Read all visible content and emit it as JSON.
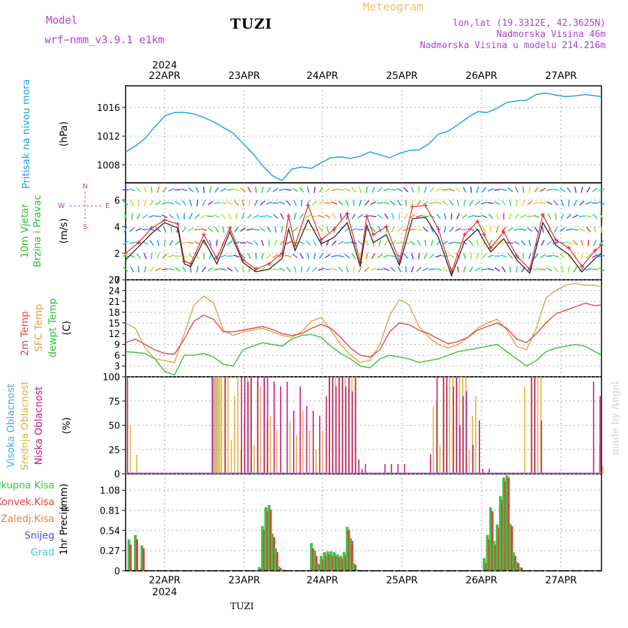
{
  "header": {
    "model_label": "Model",
    "model_name": "wrf−nmm_v3.9.1  e1km",
    "station": "TUZI",
    "title": "Meteogram",
    "lonlat": "lon,lat (19.3312E, 42.3625N)",
    "elevation": "Nadmorska Visina 46m",
    "model_elevation": "Nadmorska Visina u modelu 214.216m"
  },
  "footer": {
    "station": "TUZI",
    "made_by": "made by Angel"
  },
  "colors": {
    "title": "#f0c060",
    "meta": "#b040d0",
    "pressure": "#1aa0e8",
    "wind_speed": "#222222",
    "wind_gust": "#e83030",
    "t2m": "#e84040",
    "tsfc": "#e0a040",
    "dewpt": "#30c030",
    "cloud_high": "#40a8f0",
    "cloud_mid": "#e0b040",
    "cloud_low": "#c01880",
    "precip_total": "#40c040",
    "precip_conv": "#e04040",
    "precip_frz": "#f08040",
    "snow": "#5050f0",
    "grad": "#40c8c8"
  },
  "chart_data": [
    {
      "type": "line",
      "panel": "pressure",
      "ylabel_left": "Pritisak na nivou mora",
      "unit": "(hPa)",
      "yticks": [
        1008,
        1012,
        1016
      ],
      "ylim": [
        1005.5,
        1019
      ],
      "x_hours": [
        0,
        3,
        6,
        9,
        12,
        15,
        18,
        21,
        24,
        27,
        30,
        33,
        36,
        39,
        42,
        45,
        48,
        51,
        54,
        57,
        60,
        63,
        66,
        69,
        72,
        75,
        78,
        81,
        84,
        87,
        90,
        93,
        96,
        99,
        102,
        105,
        108,
        111,
        114,
        117,
        120,
        123,
        126,
        129,
        132,
        135,
        138,
        141,
        144,
        146
      ],
      "values": [
        1009.8,
        1010.6,
        1011.7,
        1013.3,
        1014.8,
        1015.3,
        1015.3,
        1015.1,
        1014.6,
        1014.0,
        1013.2,
        1012.4,
        1011.0,
        1009.6,
        1007.9,
        1006.5,
        1005.8,
        1007.4,
        1007.7,
        1007.5,
        1008.3,
        1009.0,
        1009.1,
        1008.9,
        1009.2,
        1009.8,
        1009.4,
        1009.0,
        1009.6,
        1010.0,
        1010.1,
        1010.9,
        1012.3,
        1012.7,
        1013.6,
        1014.6,
        1015.4,
        1015.3,
        1015.9,
        1016.7,
        1016.9,
        1017.0,
        1017.8,
        1018.0,
        1017.7,
        1017.5,
        1017.6,
        1017.8,
        1017.6,
        1017.5
      ]
    },
    {
      "type": "line",
      "panel": "wind",
      "ylabel_left": [
        "10m Vjetar",
        "Brzina i Pravac"
      ],
      "unit": "(m/s)",
      "compass_labels": [
        "N",
        "E",
        "W",
        "S"
      ],
      "yticks": [
        0,
        2,
        4,
        6
      ],
      "ylim": [
        0,
        7.3
      ],
      "x_hours": [
        0,
        4,
        8,
        12,
        16,
        18,
        20,
        24,
        28,
        32,
        36,
        40,
        44,
        48,
        50,
        52,
        56,
        60,
        64,
        68,
        72,
        74,
        76,
        80,
        84,
        88,
        92,
        96,
        100,
        104,
        108,
        110,
        112,
        116,
        120,
        124,
        128,
        132,
        136,
        140,
        144,
        146
      ],
      "series": [
        {
          "name": "speed",
          "values": [
            1.5,
            2.5,
            3.5,
            4.3,
            3.9,
            1.2,
            1.0,
            3.0,
            1.2,
            3.6,
            1.3,
            0.6,
            0.8,
            1.6,
            3.8,
            2.2,
            4.5,
            2.7,
            3.2,
            4.3,
            1.0,
            4.1,
            2.8,
            3.4,
            1.1,
            4.6,
            4.7,
            3.2,
            0.3,
            2.9,
            3.8,
            2.9,
            2.1,
            3.1,
            1.5,
            0.5,
            4.3,
            2.6,
            1.9,
            0.6,
            1.6,
            2.0
          ]
        },
        {
          "name": "gust",
          "values": [
            2.0,
            2.8,
            3.9,
            4.5,
            4.2,
            1.4,
            1.2,
            3.4,
            1.6,
            3.9,
            1.5,
            0.8,
            1.2,
            2.0,
            4.8,
            2.6,
            5.6,
            3.0,
            3.8,
            5.0,
            1.3,
            4.8,
            3.4,
            4.0,
            1.4,
            5.5,
            5.6,
            3.8,
            0.6,
            3.4,
            4.4,
            3.4,
            2.4,
            3.6,
            1.8,
            0.8,
            4.9,
            3.0,
            2.4,
            1.0,
            2.2,
            2.6
          ]
        }
      ]
    },
    {
      "type": "line",
      "panel": "temperature",
      "ylabel_left": [
        "2m Temp",
        "SFC Temp",
        "dewpt Temp"
      ],
      "unit": "(C)",
      "yticks": [
        0,
        3,
        6,
        9,
        12,
        15,
        18,
        21,
        24,
        27
      ],
      "ylim": [
        0,
        27
      ],
      "x_hours": [
        0,
        3,
        6,
        9,
        12,
        15,
        18,
        21,
        24,
        27,
        30,
        33,
        36,
        39,
        42,
        45,
        48,
        51,
        54,
        57,
        60,
        63,
        66,
        69,
        72,
        75,
        78,
        81,
        84,
        87,
        90,
        93,
        96,
        99,
        102,
        105,
        108,
        111,
        114,
        117,
        120,
        123,
        126,
        129,
        132,
        135,
        138,
        141,
        144,
        146
      ],
      "series": [
        {
          "name": "2m",
          "values": [
            9.5,
            10.5,
            9.0,
            7.5,
            6.5,
            6.3,
            10.5,
            15.5,
            17.2,
            16.0,
            12.5,
            12.5,
            13.0,
            13.5,
            14.0,
            13.2,
            12.0,
            11.5,
            12.0,
            13.5,
            14.6,
            13.5,
            11.0,
            8.0,
            6.0,
            5.5,
            7.5,
            12.5,
            15.0,
            14.5,
            13.0,
            12.0,
            10.5,
            9.2,
            9.8,
            11.0,
            13.0,
            14.0,
            15.0,
            13.5,
            10.5,
            9.5,
            12.0,
            15.0,
            17.5,
            18.5,
            19.5,
            20.5,
            19.8,
            20.0
          ]
        },
        {
          "name": "SFC",
          "values": [
            15.0,
            13.5,
            8.0,
            5.0,
            4.5,
            4.0,
            12.0,
            20.0,
            22.5,
            20.5,
            13.0,
            11.5,
            12.5,
            13.0,
            13.5,
            12.5,
            11.5,
            11.0,
            12.5,
            15.5,
            16.5,
            13.0,
            9.0,
            6.0,
            4.0,
            4.5,
            9.0,
            17.0,
            21.5,
            20.0,
            14.0,
            11.0,
            9.0,
            8.0,
            9.0,
            11.0,
            13.5,
            15.0,
            16.0,
            13.0,
            8.5,
            7.5,
            13.5,
            22.0,
            24.0,
            25.5,
            26.0,
            25.5,
            25.5,
            25.0
          ]
        },
        {
          "name": "dewpt",
          "values": [
            7.0,
            6.8,
            6.5,
            5.0,
            1.5,
            0.5,
            6.0,
            6.0,
            6.5,
            5.5,
            3.5,
            3.0,
            7.5,
            8.5,
            9.5,
            9.0,
            8.5,
            10.5,
            11.5,
            11.8,
            11.0,
            8.5,
            6.5,
            5.0,
            3.0,
            2.5,
            5.0,
            6.0,
            5.5,
            5.0,
            4.0,
            4.5,
            5.0,
            6.0,
            7.0,
            7.5,
            8.0,
            8.5,
            9.0,
            7.0,
            5.0,
            3.0,
            4.5,
            7.0,
            8.0,
            8.5,
            9.0,
            8.5,
            7.0,
            6.0
          ]
        }
      ]
    },
    {
      "type": "bar",
      "panel": "cloud",
      "ylabel_left": [
        "Visoka Oblacnost",
        "Srednja Oblacnost",
        "Niska  Oblacnost"
      ],
      "unit": "(%)",
      "yticks": [
        0,
        25,
        50,
        75,
        100
      ],
      "ylim": [
        0,
        100
      ],
      "x_hours": [
        1,
        2,
        3,
        27,
        27.5,
        28,
        28.5,
        29,
        30,
        31,
        32,
        33,
        34,
        35,
        36,
        37,
        38,
        39,
        40,
        41,
        42,
        43,
        44,
        46,
        48,
        50,
        52,
        54,
        56,
        58,
        60,
        62,
        63,
        64,
        65,
        66,
        67,
        68,
        69,
        70,
        71,
        72,
        73,
        74,
        80,
        82,
        84,
        86,
        94,
        95,
        96,
        97,
        98,
        99,
        100,
        101,
        102,
        103,
        104,
        105,
        106,
        107,
        108,
        109,
        110,
        112,
        122,
        124,
        125,
        126,
        127,
        128,
        144,
        145,
        146
      ],
      "series": [
        {
          "name": "high",
          "values": [
            0,
            0,
            0,
            100,
            100,
            100,
            0,
            0,
            0,
            0,
            0,
            0,
            0,
            0,
            0,
            0,
            0,
            0,
            0,
            0,
            0,
            0,
            0,
            0,
            0,
            0,
            0,
            0,
            0,
            0,
            0,
            0,
            0,
            0,
            0,
            0,
            0,
            0,
            0,
            0,
            0,
            0,
            0,
            0,
            0,
            0,
            0,
            0,
            0,
            0,
            0,
            0,
            0,
            0,
            0,
            0,
            0,
            0,
            0,
            0,
            0,
            0,
            0,
            0,
            0,
            0,
            0,
            0,
            0,
            0,
            0,
            0,
            0,
            0,
            0
          ]
        },
        {
          "name": "mid",
          "values": [
            50,
            0,
            20,
            100,
            100,
            100,
            100,
            100,
            100,
            100,
            35,
            80,
            100,
            25,
            60,
            100,
            100,
            30,
            95,
            90,
            100,
            55,
            60,
            45,
            0,
            55,
            40,
            65,
            45,
            25,
            45,
            100,
            100,
            100,
            100,
            100,
            100,
            100,
            100,
            100,
            0,
            0,
            0,
            0,
            0,
            0,
            0,
            0,
            70,
            75,
            30,
            100,
            90,
            100,
            100,
            100,
            100,
            100,
            100,
            25,
            60,
            80,
            0,
            0,
            0,
            0,
            90,
            100,
            100,
            100,
            100,
            0,
            0,
            30,
            8
          ]
        },
        {
          "name": "low",
          "values": [
            100,
            0,
            0,
            100,
            0,
            0,
            0,
            0,
            0,
            100,
            0,
            0,
            0,
            0,
            100,
            100,
            95,
            100,
            0,
            100,
            0,
            100,
            100,
            95,
            90,
            95,
            65,
            90,
            70,
            65,
            60,
            80,
            100,
            100,
            90,
            100,
            100,
            90,
            100,
            85,
            100,
            15,
            5,
            10,
            10,
            10,
            10,
            10,
            20,
            0,
            100,
            0,
            100,
            100,
            0,
            90,
            100,
            50,
            80,
            85,
            0,
            30,
            0,
            55,
            5,
            5,
            0,
            0,
            100,
            100,
            0,
            55,
            95,
            0,
            80
          ]
        }
      ]
    },
    {
      "type": "bar",
      "panel": "precip",
      "legend": [
        "Ukupna  Kisa",
        "Konvek.Kisa",
        "Zaledj.Kisa",
        "Snijeg",
        "Grad"
      ],
      "ylabel_left": "1hr Precip",
      "unit": "(mm)",
      "yticks": [
        0,
        0.27,
        0.54,
        0.81,
        1.08
      ],
      "ylim": [
        0,
        1.3
      ],
      "x_hours": [
        1,
        3,
        5,
        41,
        42,
        43,
        44,
        45,
        46,
        47,
        48,
        57,
        58,
        59,
        60,
        61,
        62,
        63,
        64,
        65,
        66,
        67,
        68,
        69,
        70,
        71,
        72,
        73,
        74,
        110,
        111,
        112,
        113,
        114,
        115,
        116,
        117,
        118,
        119,
        120,
        121,
        122,
        123,
        124
      ],
      "series": [
        {
          "name": "total",
          "values": [
            0.42,
            0.48,
            0.34,
            0.05,
            0.6,
            0.85,
            0.88,
            0.5,
            0.3,
            0.06,
            0.02,
            0.37,
            0.27,
            0.1,
            0.2,
            0.25,
            0.26,
            0.26,
            0.25,
            0.22,
            0.2,
            0.25,
            0.59,
            0.44,
            0.1,
            0.02,
            0.0,
            0.0,
            0.0,
            0.17,
            0.48,
            0.85,
            0.4,
            0.62,
            1.0,
            1.25,
            1.28,
            0.63,
            0.25,
            0.12,
            0.05,
            0.0,
            0.0,
            0.0
          ]
        },
        {
          "name": "conv",
          "values": [
            0.35,
            0.42,
            0.3,
            0.03,
            0.55,
            0.8,
            0.82,
            0.45,
            0.25,
            0.04,
            0.01,
            0.3,
            0.2,
            0.08,
            0.15,
            0.2,
            0.22,
            0.2,
            0.2,
            0.18,
            0.16,
            0.2,
            0.55,
            0.4,
            0.08,
            0.01,
            0.0,
            0.0,
            0.0,
            0.1,
            0.42,
            0.8,
            0.35,
            0.58,
            0.95,
            1.2,
            1.25,
            0.6,
            0.2,
            0.1,
            0.04,
            0.0,
            0.0,
            0.0
          ]
        }
      ]
    }
  ],
  "x_axis": {
    "day_labels": [
      "22APR",
      "23APR",
      "24APR",
      "25APR",
      "26APR",
      "27APR"
    ],
    "year": "2024"
  }
}
